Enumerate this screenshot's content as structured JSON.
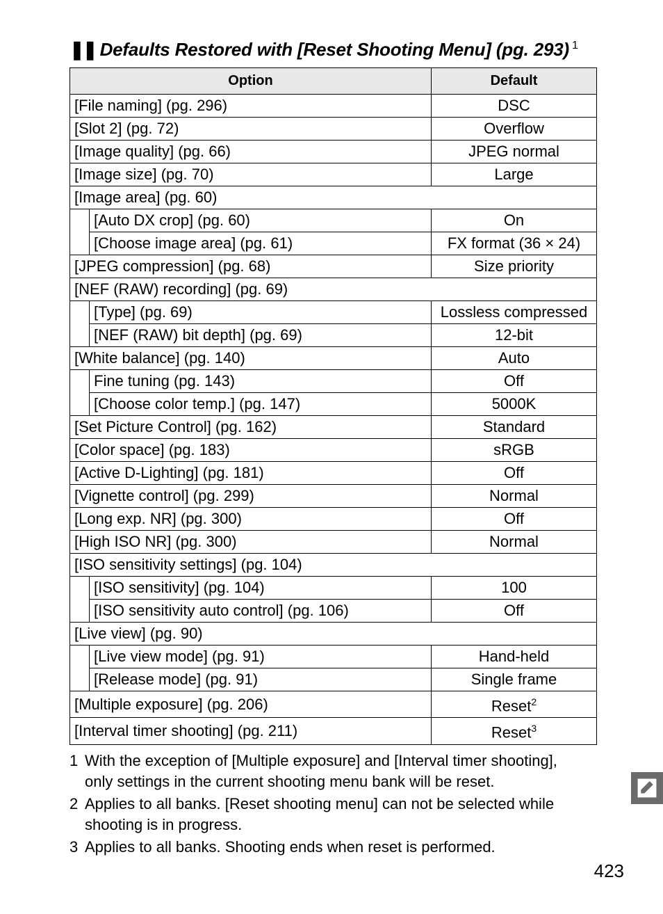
{
  "heading": {
    "bullets": "❚❚",
    "title": "Defaults Restored with [Reset Shooting Menu] (pg. 293)",
    "super": "1"
  },
  "table": {
    "headers": {
      "option": "Option",
      "default": "Default"
    },
    "rows": [
      {
        "type": "row",
        "option": "[File naming] (pg. 296)",
        "default": "DSC"
      },
      {
        "type": "row",
        "option": "[Slot 2] (pg. 72)",
        "default": "Overflow"
      },
      {
        "type": "row",
        "option": "[Image quality] (pg. 66)",
        "default": "JPEG normal"
      },
      {
        "type": "row",
        "option": "[Image size] (pg. 70)",
        "default": "Large"
      },
      {
        "type": "group",
        "option": "[Image area] (pg. 60)"
      },
      {
        "type": "sub",
        "option": "[Auto DX crop] (pg. 60)",
        "default": "On"
      },
      {
        "type": "sub_last",
        "option": "[Choose image area] (pg. 61)",
        "default": "FX format (36 × 24)"
      },
      {
        "type": "row",
        "option": "[JPEG compression] (pg. 68)",
        "default": "Size priority"
      },
      {
        "type": "group",
        "option": "[NEF (RAW) recording] (pg. 69)"
      },
      {
        "type": "sub",
        "option": "[Type] (pg. 69)",
        "default": "Lossless compressed"
      },
      {
        "type": "sub_last",
        "option": "[NEF (RAW) bit depth] (pg. 69)",
        "default": "12-bit"
      },
      {
        "type": "row",
        "option": "[White balance] (pg. 140)",
        "default": "Auto"
      },
      {
        "type": "sub",
        "option": "Fine tuning (pg. 143)",
        "default": "Off"
      },
      {
        "type": "sub_last",
        "option": "[Choose color temp.] (pg. 147)",
        "default": "5000K"
      },
      {
        "type": "row",
        "option": "[Set Picture Control] (pg. 162)",
        "default": "Standard"
      },
      {
        "type": "row",
        "option": "[Color space] (pg. 183)",
        "default": "sRGB"
      },
      {
        "type": "row",
        "option": "[Active D-Lighting] (pg. 181)",
        "default": "Off"
      },
      {
        "type": "row",
        "option": "[Vignette control] (pg. 299)",
        "default": "Normal"
      },
      {
        "type": "row",
        "option": "[Long exp.  NR] (pg. 300)",
        "default": "Off"
      },
      {
        "type": "row",
        "option": "[High ISO NR] (pg. 300)",
        "default": "Normal"
      },
      {
        "type": "group",
        "option": "[ISO sensitivity settings] (pg. 104)"
      },
      {
        "type": "sub",
        "option": "[ISO sensitivity] (pg. 104)",
        "default": "100"
      },
      {
        "type": "sub_last",
        "option": "[ISO sensitivity auto control] (pg. 106)",
        "default": "Off"
      },
      {
        "type": "group",
        "option": "[Live view] (pg. 90)"
      },
      {
        "type": "sub",
        "option": "[Live view mode] (pg. 91)",
        "default": "Hand-held"
      },
      {
        "type": "sub_last",
        "option": "[Release mode] (pg. 91)",
        "default": "Single frame"
      },
      {
        "type": "row_sup",
        "option": "[Multiple exposure] (pg. 206)",
        "default": "Reset",
        "sup": "2"
      },
      {
        "type": "row_sup",
        "option": "[Interval timer shooting] (pg. 211)",
        "default": "Reset",
        "sup": "3"
      }
    ]
  },
  "footnotes": [
    {
      "num": "1",
      "text": "With the exception of [Multiple exposure] and [Interval timer shooting], only settings in the current shooting menu bank will be reset."
    },
    {
      "num": "2",
      "text": "Applies to all banks.  [Reset shooting menu] can not be selected while shooting is in progress."
    },
    {
      "num": "3",
      "text": "Applies to all banks.  Shooting ends when reset is performed."
    }
  ],
  "pageNumber": "423"
}
